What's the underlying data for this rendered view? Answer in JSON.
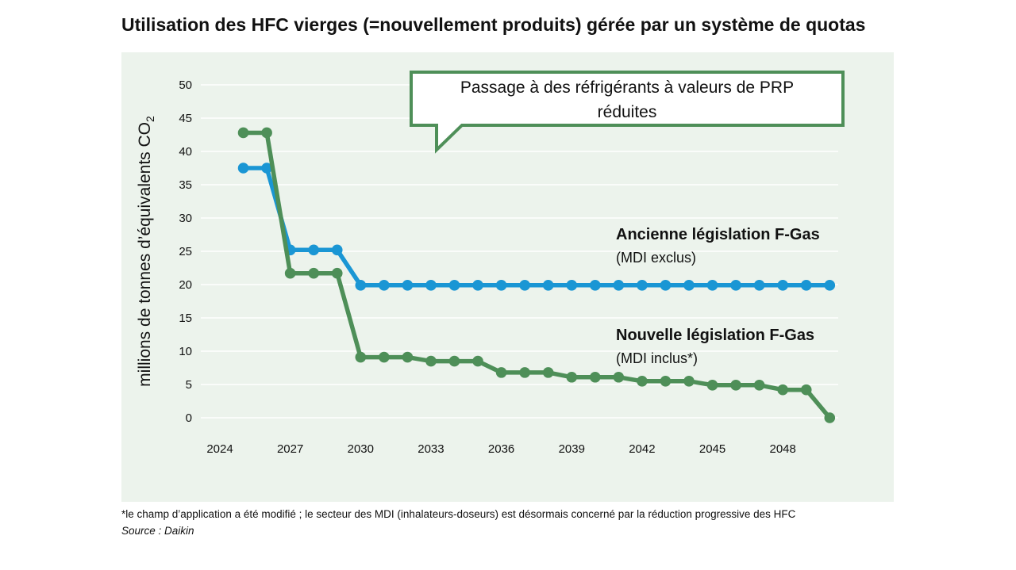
{
  "title": "Utilisation des HFC vierges (=nouvellement produits) gérée par un système de quotas",
  "footnote": "*le champ d’application a été modifié ; le secteur des MDI (inhalateurs-doseurs) est désormais concerné par la réduction progressive des HFC",
  "source": "Source : Daikin",
  "callout": {
    "line1": "Passage à des réfrigérants à valeurs de PRP",
    "line2": "réduites"
  },
  "colors": {
    "blue": "#1a96d4",
    "green": "#4e8f58",
    "panel": "#ecf3ec",
    "callout_border": "#4e8f58"
  },
  "chart_data": {
    "type": "line",
    "title": "Utilisation des HFC vierges (=nouvellement produits) gérée par un système de quotas",
    "ylabel_main": "millions de tonnes d’équivalents CO",
    "ylabel_sub": "2",
    "xlabel": "",
    "x_ticks": [
      2024,
      2027,
      2030,
      2033,
      2036,
      2039,
      2042,
      2045,
      2048
    ],
    "y_ticks": [
      0,
      5,
      10,
      15,
      20,
      25,
      30,
      35,
      40,
      45,
      50
    ],
    "ylim": [
      0,
      50
    ],
    "grid": true,
    "series": [
      {
        "name": "Ancienne législation F-Gas",
        "note": "(MDI exclus)",
        "color": "#1a96d4",
        "x": [
          2025,
          2026,
          2027,
          2028,
          2029,
          2030,
          2031,
          2032,
          2033,
          2034,
          2035,
          2036,
          2037,
          2038,
          2039,
          2040,
          2041,
          2042,
          2043,
          2044,
          2045,
          2046,
          2047,
          2048,
          2049,
          2050
        ],
        "values": [
          37.5,
          37.5,
          25.2,
          25.2,
          25.2,
          19.9,
          19.9,
          19.9,
          19.9,
          19.9,
          19.9,
          19.9,
          19.9,
          19.9,
          19.9,
          19.9,
          19.9,
          19.9,
          19.9,
          19.9,
          19.9,
          19.9,
          19.9,
          19.9,
          19.9,
          19.9
        ]
      },
      {
        "name": "Nouvelle législation F-Gas",
        "note": "(MDI inclus*)",
        "color": "#4e8f58",
        "x": [
          2025,
          2026,
          2027,
          2028,
          2029,
          2030,
          2031,
          2032,
          2033,
          2034,
          2035,
          2036,
          2037,
          2038,
          2039,
          2040,
          2041,
          2042,
          2043,
          2044,
          2045,
          2046,
          2047,
          2048,
          2049,
          2050
        ],
        "values": [
          42.8,
          42.8,
          21.7,
          21.7,
          21.7,
          9.1,
          9.1,
          9.1,
          8.5,
          8.5,
          8.5,
          6.8,
          6.8,
          6.8,
          6.1,
          6.1,
          6.1,
          5.5,
          5.5,
          5.5,
          4.9,
          4.9,
          4.9,
          4.2,
          4.2,
          0.0
        ]
      }
    ]
  }
}
